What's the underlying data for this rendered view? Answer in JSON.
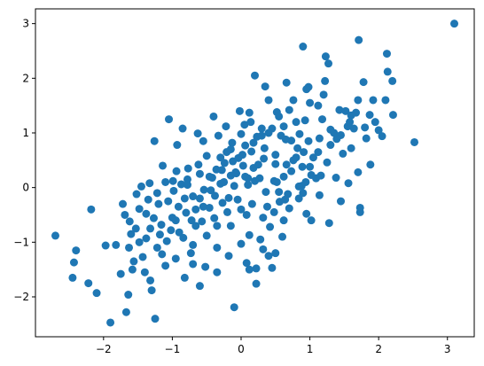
{
  "chart_data": {
    "type": "scatter",
    "title": "",
    "xlabel": "",
    "ylabel": "",
    "xlim": [
      -2.99,
      3.39
    ],
    "ylim": [
      -2.73,
      3.27
    ],
    "grid": false,
    "legend": "none",
    "marker_color": "#1f77b4",
    "x_ticks": [
      -2,
      -1,
      0,
      1,
      2,
      3
    ],
    "y_ticks": [
      -2,
      -1,
      0,
      1,
      2,
      3
    ],
    "x_tick_labels": [
      "−2",
      "−1",
      "0",
      "1",
      "2",
      "3"
    ],
    "y_tick_labels": [
      "−2",
      "−1",
      "0",
      "1",
      "2",
      "3"
    ],
    "series": [
      {
        "points": [
          [
            3.1,
            3.0
          ],
          [
            2.52,
            0.83
          ],
          [
            2.2,
            1.95
          ],
          [
            2.21,
            1.33
          ],
          [
            2.13,
            2.12
          ],
          [
            2.12,
            2.45
          ],
          [
            2.1,
            1.6
          ],
          [
            2.05,
            0.94
          ],
          [
            2.0,
            1.05
          ],
          [
            1.92,
            1.6
          ],
          [
            1.87,
            1.33
          ],
          [
            1.82,
            0.9
          ],
          [
            1.78,
            1.93
          ],
          [
            1.71,
            2.7
          ],
          [
            1.67,
            1.37
          ],
          [
            1.64,
            1.08
          ],
          [
            1.73,
            -0.37
          ],
          [
            1.73,
            -0.45
          ],
          [
            1.6,
            1.32
          ],
          [
            1.55,
            1.12
          ],
          [
            1.45,
            0.96
          ],
          [
            1.43,
            1.42
          ],
          [
            1.39,
            0.89
          ],
          [
            1.3,
            1.06
          ],
          [
            1.27,
            2.27
          ],
          [
            1.23,
            2.4
          ],
          [
            1.22,
            1.95
          ],
          [
            1.18,
            1.25
          ],
          [
            1.12,
            1.5
          ],
          [
            1.09,
            0.17
          ],
          [
            1.05,
            0.55
          ],
          [
            1.02,
            0.23
          ],
          [
            0.98,
            1.84
          ],
          [
            0.95,
            1.8
          ],
          [
            0.93,
            1.23
          ],
          [
            0.91,
            0.65
          ],
          [
            0.89,
            0.38
          ],
          [
            0.88,
            0.03
          ],
          [
            0.85,
            0.98
          ],
          [
            0.8,
            1.2
          ],
          [
            0.76,
            0.5
          ],
          [
            0.9,
            2.58
          ],
          [
            0.73,
            0.86
          ],
          [
            0.7,
            1.42
          ],
          [
            0.66,
            1.92
          ],
          [
            0.65,
            0.88
          ],
          [
            0.62,
            0.2
          ],
          [
            0.58,
            0.95
          ],
          [
            0.55,
            -0.08
          ],
          [
            0.52,
            1.38
          ],
          [
            0.5,
            0.43
          ],
          [
            0.48,
            0.12
          ],
          [
            0.45,
            1.08
          ],
          [
            0.4,
            1.6
          ],
          [
            0.38,
            -0.35
          ],
          [
            0.35,
            1.85
          ],
          [
            0.33,
            0.53
          ],
          [
            0.3,
            1.08
          ],
          [
            0.27,
            0.17
          ],
          [
            0.23,
            0.93
          ],
          [
            0.2,
            2.05
          ],
          [
            0.18,
            0.36
          ],
          [
            0.15,
            0.66
          ],
          [
            0.12,
            1.37
          ],
          [
            0.1,
            0.17
          ],
          [
            0.08,
            -0.5
          ],
          [
            0.06,
            0.77
          ],
          [
            0.03,
            0.4
          ],
          [
            0.0,
            0.98
          ],
          [
            -0.04,
            0.54
          ],
          [
            -0.07,
            0.26
          ],
          [
            -0.1,
            0.03
          ],
          [
            -0.13,
            0.82
          ],
          [
            -0.15,
            0.22
          ],
          [
            -0.18,
            -0.19
          ],
          [
            -0.21,
            0.65
          ],
          [
            -0.24,
            0.45
          ],
          [
            -0.27,
            -0.28
          ],
          [
            -0.3,
            0.07
          ],
          [
            -0.33,
            0.95
          ],
          [
            -0.36,
            0.33
          ],
          [
            -0.39,
            -0.56
          ],
          [
            -0.42,
            0.18
          ],
          [
            -0.46,
            -0.37
          ],
          [
            -0.5,
            0.58
          ],
          [
            -0.54,
            -0.04
          ],
          [
            -0.57,
            -0.62
          ],
          [
            -0.6,
            0.25
          ],
          [
            -0.63,
            0.99
          ],
          [
            -0.66,
            -0.7
          ],
          [
            -0.7,
            -0.16
          ],
          [
            -0.73,
            -1.2
          ],
          [
            -0.77,
            0.35
          ],
          [
            -0.8,
            -0.46
          ],
          [
            -0.84,
            -0.92
          ],
          [
            -0.87,
            0.06
          ],
          [
            -0.91,
            -0.35
          ],
          [
            -0.95,
            -0.6
          ],
          [
            -0.99,
            0.12
          ],
          [
            -1.02,
            -0.78
          ],
          [
            -1.06,
            -0.25
          ],
          [
            -1.1,
            -1.43
          ],
          [
            -1.14,
            0.4
          ],
          [
            -1.18,
            -0.86
          ],
          [
            -1.22,
            -0.1
          ],
          [
            -1.27,
            -0.56
          ],
          [
            -1.33,
            0.08
          ],
          [
            -1.38,
            -0.93
          ],
          [
            -1.43,
            -1.27
          ],
          [
            -1.48,
            -0.39
          ],
          [
            -1.53,
            -0.75
          ],
          [
            -1.58,
            -1.5
          ],
          [
            -1.63,
            -1.1
          ],
          [
            -1.69,
            -0.5
          ],
          [
            -1.75,
            -1.58
          ],
          [
            -1.82,
            -1.05
          ],
          [
            -1.9,
            -2.47
          ],
          [
            -1.97,
            -1.06
          ],
          [
            -2.1,
            -1.93
          ],
          [
            -2.18,
            -0.4
          ],
          [
            -2.22,
            -1.75
          ],
          [
            -2.4,
            -1.15
          ],
          [
            -2.43,
            -1.37
          ],
          [
            -2.45,
            -1.65
          ],
          [
            -2.7,
            -0.88
          ],
          [
            -1.67,
            -2.28
          ],
          [
            -1.64,
            -1.96
          ],
          [
            -1.25,
            -2.4
          ],
          [
            -1.3,
            -1.88
          ],
          [
            -1.32,
            -1.7
          ],
          [
            -0.82,
            -1.65
          ],
          [
            -0.6,
            -1.8
          ],
          [
            -0.1,
            -2.19
          ],
          [
            0.22,
            -1.76
          ],
          [
            -1.26,
            0.85
          ],
          [
            -1.05,
            1.25
          ],
          [
            -0.85,
            1.08
          ],
          [
            -0.93,
            0.78
          ],
          [
            -0.4,
            1.3
          ],
          [
            -0.22,
            1.12
          ],
          [
            0.05,
            1.15
          ],
          [
            0.08,
            -1.38
          ],
          [
            0.22,
            -1.48
          ],
          [
            0.32,
            -1.13
          ],
          [
            0.45,
            -1.47
          ],
          [
            0.5,
            -1.2
          ],
          [
            0.6,
            -0.9
          ],
          [
            0.62,
            -0.6
          ],
          [
            0.7,
            -0.38
          ],
          [
            0.84,
            -0.2
          ],
          [
            0.95,
            -0.48
          ],
          [
            1.02,
            -0.6
          ],
          [
            1.14,
            -0.14
          ],
          [
            1.28,
            -0.65
          ],
          [
            1.45,
            -0.25
          ],
          [
            1.56,
            0.08
          ],
          [
            1.7,
            0.28
          ],
          [
            1.88,
            0.42
          ],
          [
            1.38,
            0.18
          ],
          [
            1.25,
            0.46
          ],
          [
            1.12,
            0.65
          ],
          [
            0.94,
            0.1
          ],
          [
            0.73,
            0.3
          ],
          [
            0.56,
            -0.26
          ],
          [
            0.42,
            -0.72
          ],
          [
            0.28,
            -0.95
          ],
          [
            0.12,
            -0.87
          ],
          [
            0.0,
            -1.03
          ],
          [
            -0.18,
            -1.25
          ],
          [
            -0.35,
            -1.1
          ],
          [
            -0.52,
            -1.45
          ],
          [
            -0.7,
            -1.05
          ],
          [
            -0.95,
            -1.3
          ],
          [
            -1.15,
            -1.22
          ],
          [
            -1.38,
            -0.48
          ],
          [
            -1.52,
            -0.12
          ],
          [
            -1.45,
            0.02
          ],
          [
            -1.2,
            -0.3
          ],
          [
            -0.98,
            -0.06
          ],
          [
            -0.78,
            0.05
          ],
          [
            -0.6,
            -0.2
          ],
          [
            -0.44,
            -0.05
          ],
          [
            -0.28,
            0.32
          ],
          [
            -0.12,
            0.48
          ],
          [
            0.02,
            0.6
          ],
          [
            0.18,
            0.82
          ],
          [
            0.34,
            0.72
          ],
          [
            0.5,
            0.6
          ],
          [
            0.66,
            0.42
          ],
          [
            0.82,
            0.72
          ],
          [
            0.98,
            0.85
          ],
          [
            1.14,
            0.9
          ],
          [
            1.3,
            0.78
          ],
          [
            1.48,
            0.62
          ],
          [
            1.6,
            0.72
          ],
          [
            1.8,
            1.1
          ],
          [
            1.95,
            1.2
          ],
          [
            1.52,
            1.4
          ],
          [
            1.2,
            1.7
          ],
          [
            1.0,
            1.55
          ],
          [
            0.76,
            1.6
          ],
          [
            0.55,
            1.3
          ],
          [
            0.4,
            1.0
          ],
          [
            0.25,
            0.42
          ],
          [
            0.1,
            0.05
          ],
          [
            -0.05,
            -0.22
          ],
          [
            -0.2,
            -0.45
          ],
          [
            -0.35,
            -0.7
          ],
          [
            -0.5,
            -0.88
          ],
          [
            -0.66,
            -0.4
          ],
          [
            -0.82,
            -0.2
          ],
          [
            -1.0,
            -0.55
          ],
          [
            -1.16,
            -0.68
          ],
          [
            -1.32,
            -0.75
          ],
          [
            -1.48,
            -1.0
          ],
          [
            -1.6,
            -0.85
          ],
          [
            -1.72,
            -0.3
          ],
          [
            -1.56,
            -1.35
          ],
          [
            -1.4,
            -1.55
          ],
          [
            -1.22,
            -1.1
          ],
          [
            -1.08,
            -0.98
          ],
          [
            -0.9,
            -0.82
          ],
          [
            -0.72,
            -0.6
          ],
          [
            -0.55,
            -0.35
          ],
          [
            -0.38,
            -0.15
          ],
          [
            -0.25,
            0.1
          ],
          [
            -0.08,
            0.28
          ],
          [
            0.06,
            0.2
          ],
          [
            0.2,
            0.12
          ],
          [
            0.36,
            -0.08
          ],
          [
            0.52,
            0.1
          ],
          [
            0.68,
            -0.12
          ],
          [
            0.84,
            0.02
          ],
          [
            1.0,
            0.38
          ],
          [
            1.16,
            0.22
          ],
          [
            0.3,
            0.95
          ],
          [
            0.14,
            1.2
          ],
          [
            -0.02,
            1.4
          ],
          [
            -0.15,
            0.7
          ],
          [
            -0.3,
            0.55
          ],
          [
            -0.46,
            0.2
          ],
          [
            -0.62,
            0.42
          ],
          [
            -0.78,
            0.15
          ],
          [
            -0.94,
            0.3
          ],
          [
            -1.1,
            0.1
          ],
          [
            -0.15,
            -0.7
          ],
          [
            0.0,
            -0.4
          ],
          [
            0.16,
            -0.3
          ],
          [
            0.32,
            -0.55
          ],
          [
            0.48,
            -0.45
          ],
          [
            0.64,
            -0.22
          ],
          [
            0.8,
            0.55
          ],
          [
            -1.35,
            -0.22
          ],
          [
            -1.62,
            -0.62
          ],
          [
            -0.55,
            0.85
          ],
          [
            -0.7,
            -1.4
          ],
          [
            -0.35,
            -1.55
          ],
          [
            0.12,
            -1.5
          ],
          [
            0.4,
            -1.25
          ],
          [
            0.9,
            -0.1
          ],
          [
            1.35,
            1.0
          ],
          [
            1.58,
            1.2
          ],
          [
            1.7,
            1.6
          ],
          [
            0.62,
            1.12
          ]
        ]
      }
    ]
  }
}
